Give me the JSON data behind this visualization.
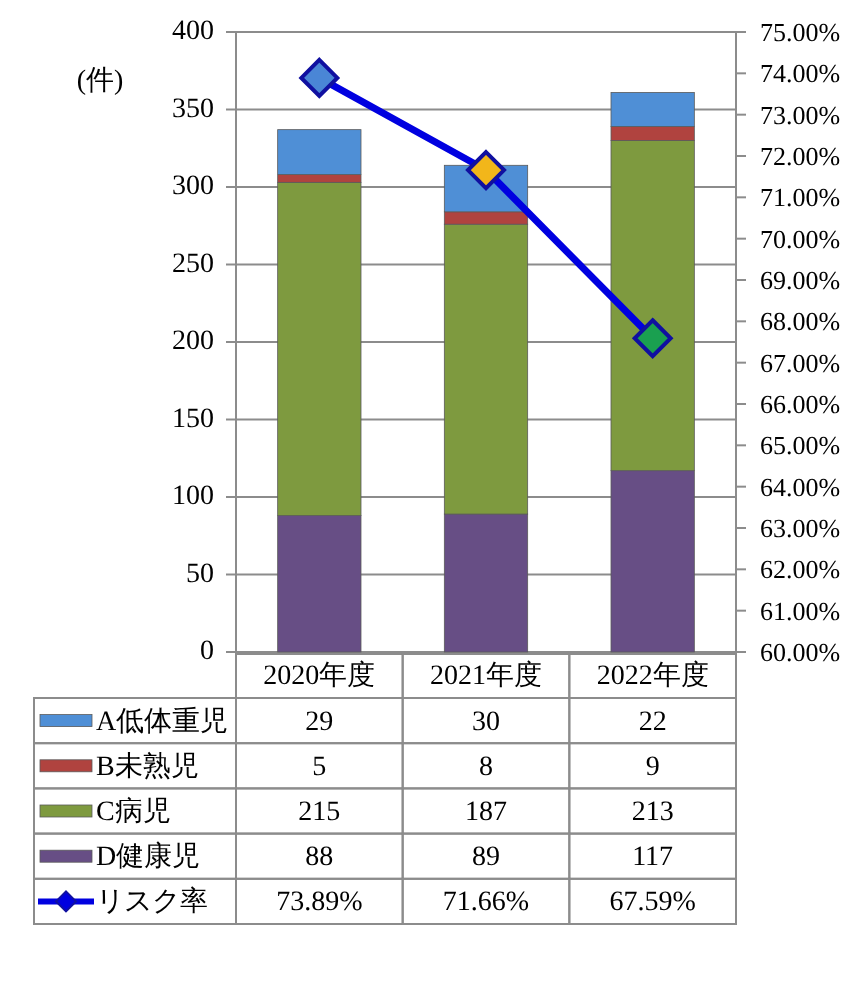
{
  "chart_data": {
    "type": "bar",
    "stacked": true,
    "categories": [
      "2020年度",
      "2021年度",
      "2022年度"
    ],
    "ylabel": "(件)",
    "ylim": [
      0,
      400
    ],
    "yticks": [
      0,
      50,
      100,
      150,
      200,
      250,
      300,
      350,
      400
    ],
    "y2lim": [
      60,
      75
    ],
    "y2ticks": [
      {
        "value": 60,
        "label": "60.00%"
      },
      {
        "value": 61,
        "label": "61.00%"
      },
      {
        "value": 62,
        "label": "62.00%"
      },
      {
        "value": 63,
        "label": "63.00%"
      },
      {
        "value": 64,
        "label": "64.00%"
      },
      {
        "value": 65,
        "label": "65.00%"
      },
      {
        "value": 66,
        "label": "66.00%"
      },
      {
        "value": 67,
        "label": "67.00%"
      },
      {
        "value": 68,
        "label": "68.00%"
      },
      {
        "value": 69,
        "label": "69.00%"
      },
      {
        "value": 70,
        "label": "70.00%"
      },
      {
        "value": 71,
        "label": "71.00%"
      },
      {
        "value": 72,
        "label": "72.00%"
      },
      {
        "value": 73,
        "label": "73.00%"
      },
      {
        "value": 74,
        "label": "74.00%"
      },
      {
        "value": 75,
        "label": "75.00%"
      }
    ],
    "grid": "y",
    "legend": "bottom",
    "series": [
      {
        "name": "D健康児",
        "color": "#674e85",
        "values": [
          88,
          89,
          117
        ],
        "value_labels": [
          "88",
          "89",
          "117"
        ]
      },
      {
        "name": "C病児",
        "color": "#7e9a3f",
        "values": [
          215,
          187,
          213
        ],
        "value_labels": [
          "215",
          "187",
          "213"
        ]
      },
      {
        "name": "B未熟児",
        "color": "#b0433f",
        "values": [
          5,
          8,
          9
        ],
        "value_labels": [
          "5",
          "8",
          "9"
        ]
      },
      {
        "name": "A低体重児",
        "color": "#4f8fd6",
        "values": [
          29,
          30,
          22
        ],
        "value_labels": [
          "29",
          "30",
          "22"
        ]
      },
      {
        "name": "リスク率",
        "type": "line",
        "axis": "y2",
        "color": "#0000e0",
        "colors": [
          "#4a86d6",
          "#f2b61a",
          "#1aa050"
        ],
        "marker": "diamond",
        "values": [
          73.89,
          71.66,
          67.59
        ],
        "value_labels": [
          "73.89%",
          "71.66%",
          "67.59%"
        ]
      }
    ]
  }
}
